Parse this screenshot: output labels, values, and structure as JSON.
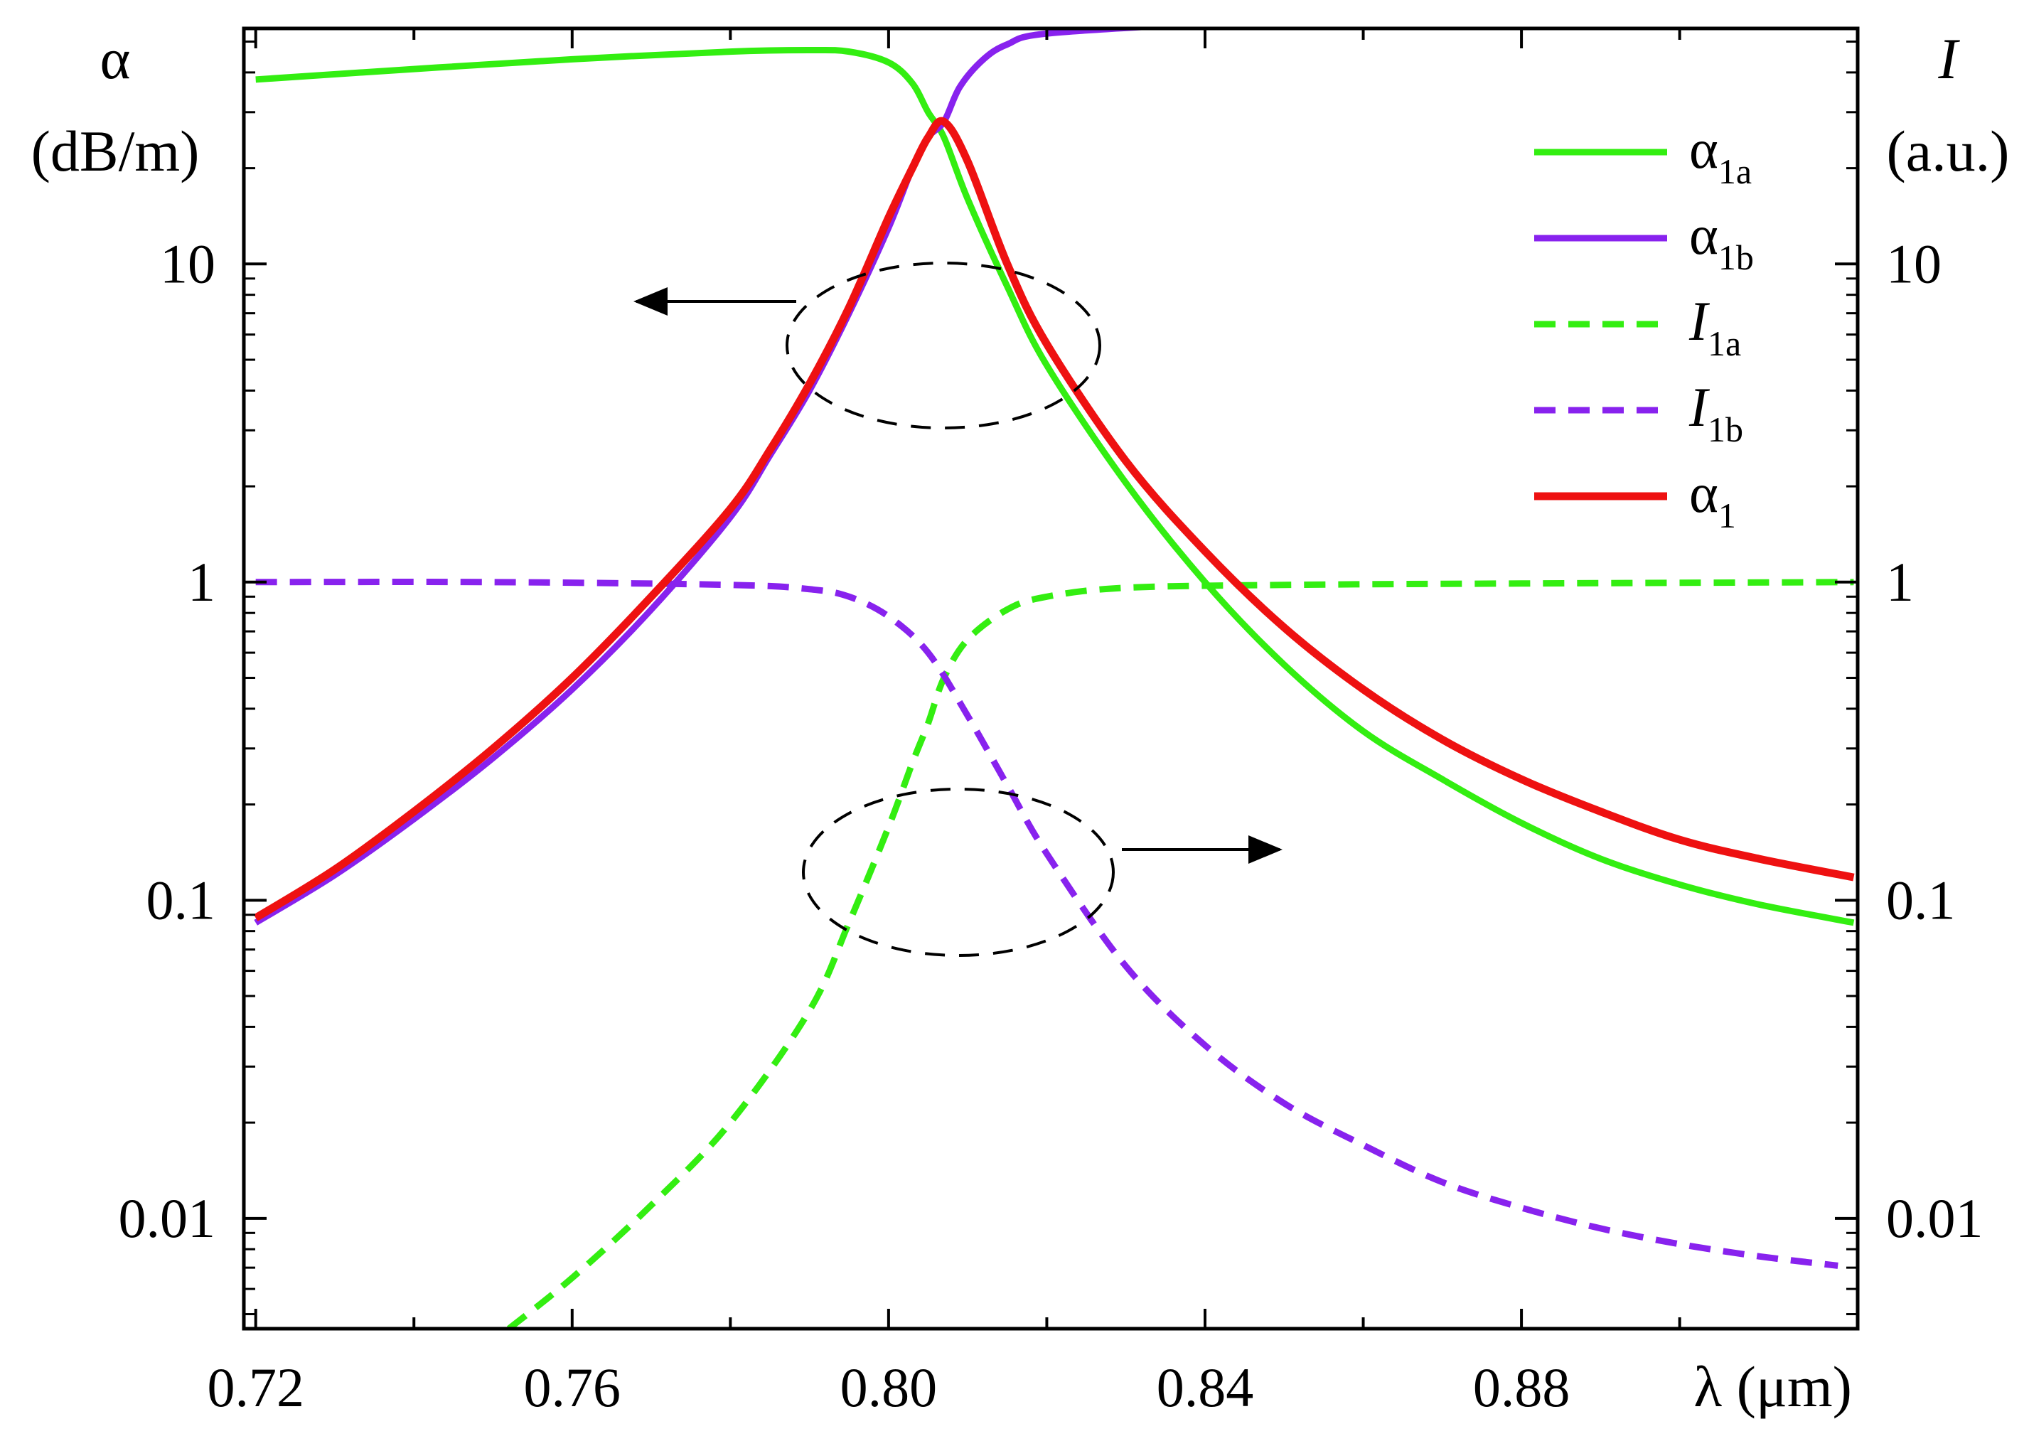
{
  "chart_data": {
    "type": "line",
    "xlabel": "λ (μm)",
    "ylabel_left": [
      "α",
      "(dB/m)"
    ],
    "ylabel_right": [
      "I",
      "(a.u.)"
    ],
    "xlim": [
      0.7185,
      0.9225
    ],
    "ylim": [
      0.0045,
      55
    ],
    "yscale": "log",
    "x_ticks": [
      "0.72",
      "0.76",
      "0.80",
      "0.84",
      "0.88"
    ],
    "x_tick_values": [
      0.72,
      0.76,
      0.8,
      0.84,
      0.88
    ],
    "y_ticks": [
      "0.01",
      "0.1",
      "1",
      "10"
    ],
    "y_tick_values": [
      0.01,
      0.1,
      1,
      10
    ],
    "legend_position": "top-right",
    "series": [
      {
        "name": "α1a",
        "label_main": "α",
        "label_sub": "1a",
        "label_italic": false,
        "color": "#33ee11",
        "style": "solid",
        "x": [
          0.72,
          0.74,
          0.76,
          0.78,
          0.79,
          0.795,
          0.8,
          0.803,
          0.805,
          0.807,
          0.81,
          0.815,
          0.82,
          0.83,
          0.84,
          0.85,
          0.86,
          0.87,
          0.88,
          0.89,
          0.9,
          0.91,
          0.922
        ],
        "y": [
          38,
          41,
          44,
          46.5,
          47,
          46.5,
          43,
          37,
          30,
          25,
          16,
          8.5,
          4.8,
          2.05,
          1.0,
          0.55,
          0.34,
          0.24,
          0.175,
          0.135,
          0.112,
          0.097,
          0.085
        ]
      },
      {
        "name": "α1b",
        "label_main": "α",
        "label_sub": "1b",
        "label_italic": false,
        "color": "#8822ee",
        "style": "solid",
        "x": [
          0.72,
          0.73,
          0.74,
          0.75,
          0.76,
          0.77,
          0.78,
          0.785,
          0.79,
          0.795,
          0.8,
          0.803,
          0.805,
          0.807,
          0.809,
          0.812,
          0.815,
          0.82,
          0.84,
          0.86,
          0.88,
          0.9,
          0.922
        ],
        "y": [
          0.085,
          0.12,
          0.18,
          0.28,
          0.46,
          0.82,
          1.6,
          2.5,
          4.0,
          7.0,
          13,
          20,
          25,
          28,
          36,
          44,
          49,
          53,
          57,
          60,
          63,
          66,
          70
        ]
      },
      {
        "name": "I1a",
        "label_main": "I",
        "label_sub": "1a",
        "label_italic": true,
        "color": "#33ee11",
        "style": "dashed",
        "x": [
          0.752,
          0.76,
          0.77,
          0.78,
          0.79,
          0.795,
          0.8,
          0.803,
          0.805,
          0.807,
          0.81,
          0.815,
          0.82,
          0.83,
          0.85,
          0.88,
          0.922
        ],
        "y": [
          0.0045,
          0.0065,
          0.011,
          0.02,
          0.045,
          0.085,
          0.17,
          0.27,
          0.36,
          0.5,
          0.66,
          0.82,
          0.9,
          0.96,
          0.98,
          0.99,
          1.0
        ]
      },
      {
        "name": "I1b",
        "label_main": "I",
        "label_sub": "1b",
        "label_italic": true,
        "color": "#8822ee",
        "style": "dashed",
        "x": [
          0.72,
          0.75,
          0.78,
          0.79,
          0.795,
          0.8,
          0.805,
          0.81,
          0.815,
          0.82,
          0.83,
          0.84,
          0.85,
          0.86,
          0.87,
          0.88,
          0.89,
          0.9,
          0.91,
          0.92
        ],
        "y": [
          1.0,
          1.0,
          0.98,
          0.95,
          0.9,
          0.78,
          0.6,
          0.38,
          0.23,
          0.14,
          0.062,
          0.035,
          0.023,
          0.017,
          0.013,
          0.0108,
          0.0093,
          0.0083,
          0.0076,
          0.0071
        ]
      },
      {
        "name": "α1",
        "label_main": "α",
        "label_sub": "1",
        "label_italic": false,
        "color": "#ee1111",
        "style": "solid",
        "x": [
          0.72,
          0.73,
          0.74,
          0.75,
          0.76,
          0.77,
          0.78,
          0.785,
          0.79,
          0.795,
          0.8,
          0.803,
          0.805,
          0.807,
          0.81,
          0.815,
          0.82,
          0.83,
          0.84,
          0.85,
          0.86,
          0.87,
          0.88,
          0.89,
          0.9,
          0.91,
          0.922
        ],
        "y": [
          0.088,
          0.125,
          0.19,
          0.3,
          0.5,
          0.9,
          1.7,
          2.6,
          4.2,
          7.3,
          14,
          20,
          25,
          28,
          21,
          10,
          5.6,
          2.4,
          1.25,
          0.72,
          0.46,
          0.32,
          0.24,
          0.19,
          0.155,
          0.135,
          0.118
        ]
      }
    ]
  }
}
